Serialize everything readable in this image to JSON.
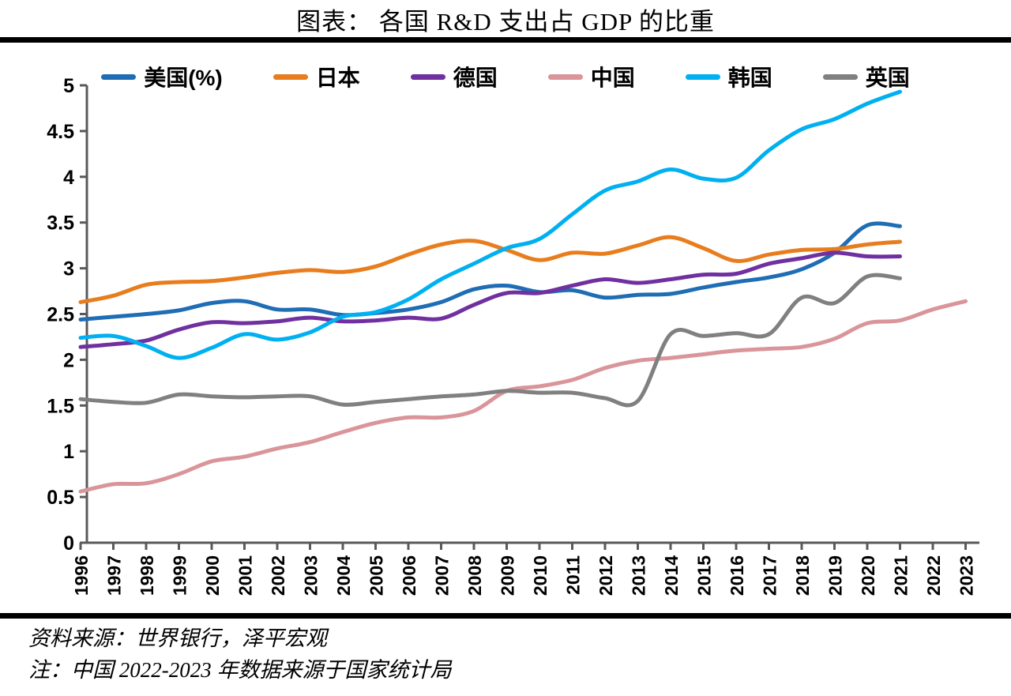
{
  "title": "图表： 各国 R&D 支出占 GDP 的比重",
  "source_note": "资料来源：世界银行，泽平宏观",
  "footnote": "注：中国 2022-2023 年数据来源于国家统计局",
  "style_colors": {
    "divider": "#000000",
    "axis": "#595959",
    "text": "#000000"
  },
  "chart_data": {
    "type": "line",
    "title": "图表： 各国 R&D 支出占 GDP 的比重",
    "x": [
      1996,
      1997,
      1998,
      1999,
      2000,
      2001,
      2002,
      2003,
      2004,
      2005,
      2006,
      2007,
      2008,
      2009,
      2010,
      2011,
      2012,
      2013,
      2014,
      2015,
      2016,
      2017,
      2018,
      2019,
      2020,
      2021,
      2022,
      2023
    ],
    "ylim": [
      0,
      5
    ],
    "ytick_labels": [
      "0",
      "0.5",
      "1",
      "1.5",
      "2",
      "2.5",
      "3",
      "3.5",
      "4",
      "4.5",
      "5"
    ],
    "grid": false,
    "legend_position": "top",
    "xlabel": "",
    "ylabel": "",
    "series": [
      {
        "name": "美国(%)",
        "color": "#1f6db4",
        "values": [
          2.44,
          2.47,
          2.5,
          2.54,
          2.62,
          2.64,
          2.55,
          2.55,
          2.49,
          2.51,
          2.55,
          2.63,
          2.77,
          2.81,
          2.74,
          2.76,
          2.68,
          2.71,
          2.72,
          2.79,
          2.85,
          2.9,
          2.99,
          3.17,
          3.47,
          3.46,
          null,
          null
        ]
      },
      {
        "name": "日本",
        "color": "#e87d1e",
        "values": [
          2.63,
          2.7,
          2.82,
          2.85,
          2.86,
          2.9,
          2.95,
          2.98,
          2.96,
          3.02,
          3.15,
          3.26,
          3.3,
          3.2,
          3.09,
          3.17,
          3.16,
          3.25,
          3.34,
          3.22,
          3.08,
          3.15,
          3.2,
          3.21,
          3.26,
          3.29,
          null,
          null
        ]
      },
      {
        "name": "德国",
        "color": "#7030a0",
        "values": [
          2.14,
          2.17,
          2.21,
          2.33,
          2.41,
          2.4,
          2.42,
          2.46,
          2.42,
          2.43,
          2.46,
          2.45,
          2.6,
          2.73,
          2.73,
          2.81,
          2.88,
          2.84,
          2.88,
          2.93,
          2.94,
          3.05,
          3.11,
          3.17,
          3.13,
          3.13,
          null,
          null
        ]
      },
      {
        "name": "中国",
        "color": "#d9959a",
        "values": [
          0.56,
          0.64,
          0.65,
          0.75,
          0.89,
          0.94,
          1.03,
          1.1,
          1.21,
          1.31,
          1.37,
          1.37,
          1.44,
          1.66,
          1.71,
          1.78,
          1.91,
          1.99,
          2.02,
          2.06,
          2.1,
          2.12,
          2.14,
          2.23,
          2.4,
          2.43,
          2.55,
          2.64
        ]
      },
      {
        "name": "韩国",
        "color": "#00b0f0",
        "values": [
          2.24,
          2.26,
          2.15,
          2.02,
          2.13,
          2.28,
          2.22,
          2.3,
          2.47,
          2.52,
          2.66,
          2.88,
          3.05,
          3.22,
          3.32,
          3.59,
          3.85,
          3.95,
          4.08,
          3.98,
          3.99,
          4.29,
          4.52,
          4.63,
          4.8,
          4.93,
          null,
          null
        ]
      },
      {
        "name": "英国",
        "color": "#808080",
        "values": [
          1.57,
          1.54,
          1.53,
          1.62,
          1.6,
          1.59,
          1.6,
          1.6,
          1.51,
          1.54,
          1.57,
          1.6,
          1.62,
          1.66,
          1.64,
          1.64,
          1.58,
          1.55,
          2.28,
          2.26,
          2.29,
          2.28,
          2.68,
          2.62,
          2.91,
          2.89,
          null,
          null
        ]
      }
    ]
  }
}
